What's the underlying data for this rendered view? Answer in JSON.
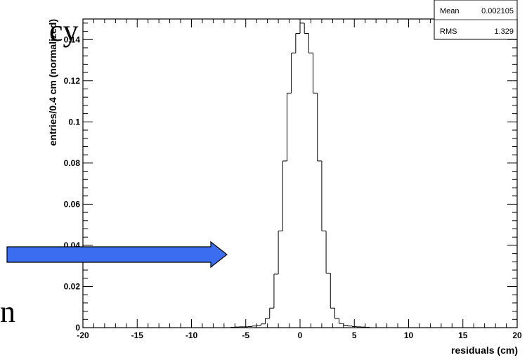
{
  "slide": {
    "fragment_top": "cy",
    "fragment_bottom": "n"
  },
  "stats_box": {
    "mean_label": "Mean",
    "mean_value": "0.002105",
    "rms_label": "RMS",
    "rms_value": "1.329"
  },
  "arrow": {
    "fill": "#3a6df0",
    "stroke": "#000000"
  },
  "chart_data": {
    "type": "histogram",
    "xlabel": "residuals (cm)",
    "ylabel": "entries/0.4 cm (normalized)",
    "xlim": [
      -20,
      20
    ],
    "ylim": [
      0,
      0.15
    ],
    "xticks": [
      -20,
      -15,
      -10,
      -5,
      0,
      5,
      10,
      15,
      20
    ],
    "xtick_labels": [
      "-20",
      "-15",
      "-10",
      "-5",
      "0",
      "5",
      "10",
      "15",
      "20"
    ],
    "yticks": [
      0,
      0.02,
      0.04,
      0.06,
      0.08,
      0.1,
      0.12,
      0.14
    ],
    "ytick_labels": [
      "0",
      "0.02",
      "0.04",
      "0.06",
      "0.08",
      "0.1",
      "0.12",
      "0.14"
    ],
    "bin_edges": [
      -6.4,
      -6.0,
      -5.6,
      -5.2,
      -4.8,
      -4.4,
      -4.0,
      -3.6,
      -3.2,
      -2.8,
      -2.4,
      -2.0,
      -1.6,
      -1.2,
      -0.8,
      -0.4,
      0.0,
      0.4,
      0.8,
      1.2,
      1.6,
      2.0,
      2.4,
      2.8,
      3.2,
      3.6,
      4.0,
      4.4,
      4.8,
      5.2,
      5.6,
      6.0,
      6.4
    ],
    "values": [
      0.0002,
      0.0003,
      0.0004,
      0.0004,
      0.0005,
      0.0008,
      0.001,
      0.0018,
      0.0045,
      0.0095,
      0.026,
      0.047,
      0.081,
      0.114,
      0.1335,
      0.143,
      0.148,
      0.143,
      0.1335,
      0.114,
      0.081,
      0.047,
      0.0265,
      0.0095,
      0.0045,
      0.002,
      0.0012,
      0.0008,
      0.0005,
      0.0004,
      0.0003,
      0.0002
    ],
    "line_color": "#000000"
  }
}
